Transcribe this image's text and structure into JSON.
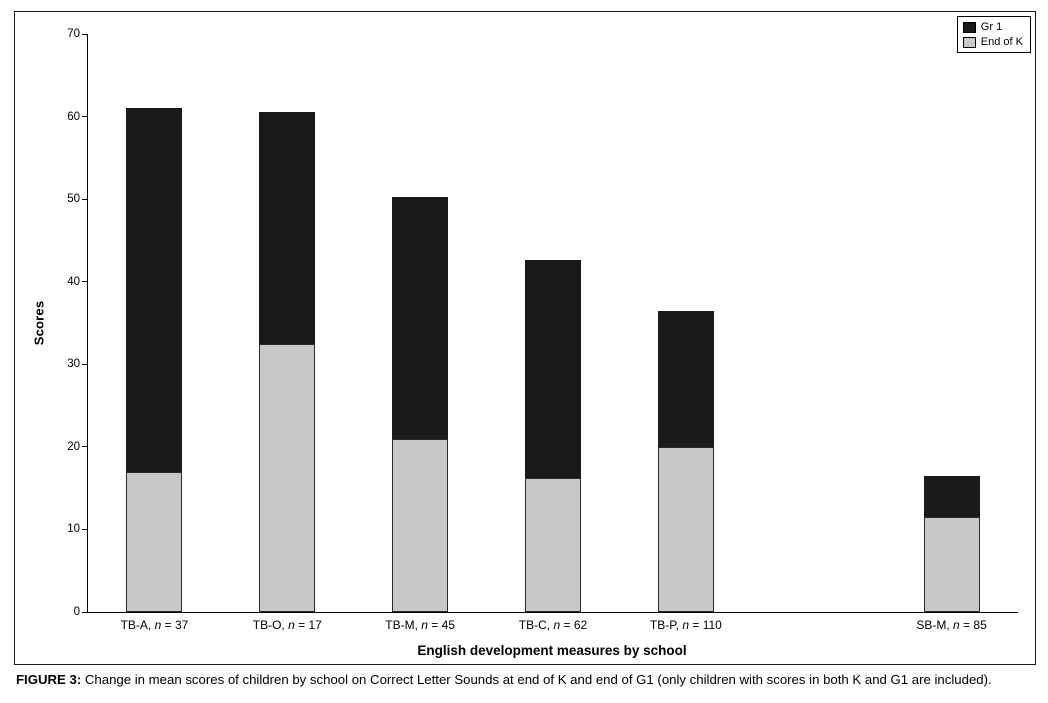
{
  "caption": {
    "label": "FIGURE 3:",
    "text": "Change in mean scores of children by school on Correct Letter Sounds at end of K and end of G1 (only children with scores in both K and G1 are included)."
  },
  "chart_data": {
    "type": "bar",
    "variant": "stacked",
    "title": "",
    "xlabel": "English development measures by school",
    "ylabel": "Scores",
    "ylim": [
      0,
      70
    ],
    "y_ticks": [
      0,
      10,
      20,
      30,
      40,
      50,
      60,
      70
    ],
    "grid": false,
    "total_slots": 7,
    "categories": [
      {
        "school": "TB-A",
        "n": 37,
        "slot": 0,
        "label": "TB-A, n = 37"
      },
      {
        "school": "TB-O",
        "n": 17,
        "slot": 1,
        "label": "TB-O, n = 17"
      },
      {
        "school": "TB-M",
        "n": 45,
        "slot": 2,
        "label": "TB-M, n = 45"
      },
      {
        "school": "TB-C",
        "n": 62,
        "slot": 3,
        "label": "TB-C, n = 62"
      },
      {
        "school": "TB-P",
        "n": 110,
        "slot": 4,
        "label": "TB-P, n = 110"
      },
      {
        "school": "SB-M",
        "n": 85,
        "slot": 6,
        "label": "SB-M, n = 85"
      }
    ],
    "series": [
      {
        "name": "End of K",
        "color": "#c8c8c8",
        "values": [
          17.0,
          32.5,
          21.0,
          16.2,
          20.0,
          11.5
        ]
      },
      {
        "name": "Gr 1",
        "color": "#1a1a1a",
        "stacked_totals": [
          61.0,
          60.5,
          50.3,
          42.6,
          36.5,
          16.5
        ]
      }
    ],
    "legend": {
      "position": "top-right",
      "entries": [
        "Gr 1",
        "End of K"
      ]
    }
  }
}
